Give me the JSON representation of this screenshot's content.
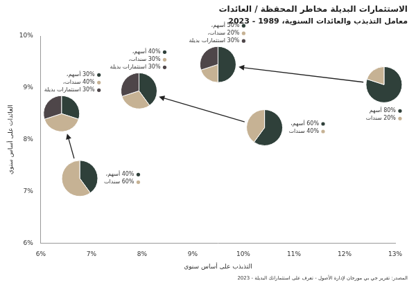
{
  "chart_data": {
    "type": "scatter",
    "title": "الاستثمارات البديلة مخاطر المحفظة / العائدات",
    "subtitle": "معامل التذبذب والعائدات السنوية، 1989 - 2023",
    "source": "المصدر: تقرير جي بي مورجان لإدارة الأصول - تعرف على استثماراتك البديلة - 2023",
    "x_label": "التذبذب على أساس سنوي",
    "y_label": "العائدات على أساس سنوي",
    "xlim": [
      6,
      13
    ],
    "xticks": [
      {
        "value": 6,
        "label": "6%"
      },
      {
        "value": 7,
        "label": "7%"
      },
      {
        "value": 8,
        "label": "8%"
      },
      {
        "value": 9,
        "label": "9%"
      },
      {
        "value": 10,
        "label": "10%"
      },
      {
        "value": 11,
        "label": "11%"
      },
      {
        "value": 12,
        "label": "12%"
      },
      {
        "value": 13,
        "label": "13%"
      }
    ],
    "ylim": [
      6,
      10
    ],
    "yticks": [
      {
        "value": 6,
        "label": "6%"
      },
      {
        "value": 7,
        "label": "7%"
      },
      {
        "value": 8,
        "label": "8%"
      },
      {
        "value": 9,
        "label": "9%"
      },
      {
        "value": 10,
        "label": "10%"
      }
    ],
    "grid": false,
    "marker": "pie",
    "moves": [
      {
        "from": {
          "x": 12.78,
          "y": 9.06,
          "slices": [
            {
              "label": "80% أسهم",
              "value": 80,
              "color": "#2f403a"
            },
            {
              "label": "20% سندات",
              "value": 20,
              "color": "#c6b294"
            }
          ]
        },
        "to": {
          "x": 9.5,
          "y": 9.45,
          "slices": [
            {
              "label": "50% أسهم،",
              "value": 50,
              "color": "#2f403a"
            },
            {
              "label": "20% سندات،",
              "value": 20,
              "color": "#c6b294"
            },
            {
              "label": "30% استثمارات بديلة",
              "value": 30,
              "color": "#4e4649"
            }
          ]
        }
      },
      {
        "from": {
          "x": 10.42,
          "y": 8.23,
          "slices": [
            {
              "label": "60% أسهم،",
              "value": 60,
              "color": "#2f403a"
            },
            {
              "label": "40% سندات",
              "value": 40,
              "color": "#c6b294"
            }
          ]
        },
        "to": {
          "x": 7.94,
          "y": 8.94,
          "slices": [
            {
              "label": "40% أسهم،",
              "value": 40,
              "color": "#2f403a"
            },
            {
              "label": "30% سندات،",
              "value": 30,
              "color": "#c6b294"
            },
            {
              "label": "30% استثمارات بديلة",
              "value": 30,
              "color": "#4e4649"
            }
          ]
        }
      },
      {
        "from": {
          "x": 6.77,
          "y": 7.25,
          "slices": [
            {
              "label": "40% أسهم،",
              "value": 40,
              "color": "#2f403a"
            },
            {
              "label": "60% سندات",
              "value": 60,
              "color": "#c6b294"
            }
          ]
        },
        "to": {
          "x": 6.41,
          "y": 8.5,
          "slices": [
            {
              "label": "30% أسهم،",
              "value": 30,
              "color": "#2f403a"
            },
            {
              "label": "40% سندات،",
              "value": 40,
              "color": "#c6b294"
            },
            {
              "label": "30% استثمارات بديلة",
              "value": 30,
              "color": "#4e4649"
            }
          ]
        }
      }
    ]
  }
}
